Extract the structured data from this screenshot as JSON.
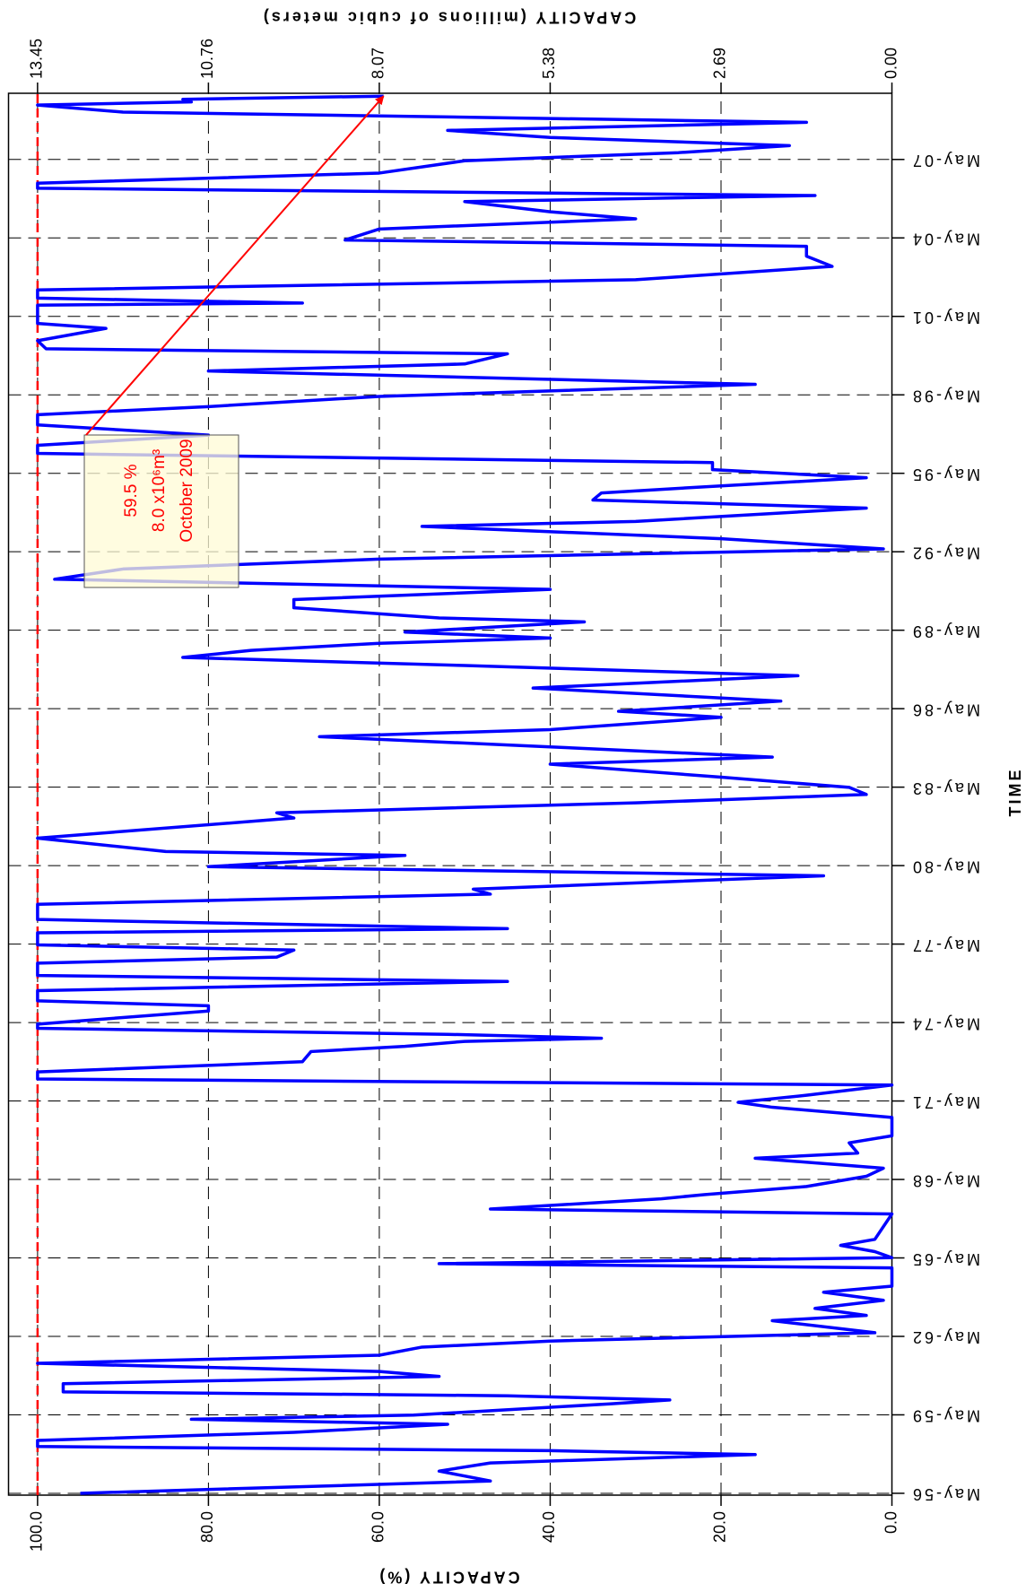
{
  "chart_data": {
    "type": "line",
    "x_label": "TIME",
    "y_label": "CAPACITY (%)",
    "y2_label": "CAPACITY (millions of cubic meters)",
    "color": "#0000ff",
    "grid": true,
    "xlim": [
      1956.3,
      2009.9
    ],
    "xticks": [
      {
        "value": 1956.37,
        "label": "May-56"
      },
      {
        "value": 1959.37,
        "label": "May-59"
      },
      {
        "value": 1962.37,
        "label": "May-62"
      },
      {
        "value": 1965.37,
        "label": "May-65"
      },
      {
        "value": 1968.37,
        "label": "May-68"
      },
      {
        "value": 1971.37,
        "label": "May-71"
      },
      {
        "value": 1974.37,
        "label": "May-74"
      },
      {
        "value": 1977.37,
        "label": "May-77"
      },
      {
        "value": 1980.37,
        "label": "May-80"
      },
      {
        "value": 1983.37,
        "label": "May-83"
      },
      {
        "value": 1986.37,
        "label": "May-86"
      },
      {
        "value": 1989.37,
        "label": "May-89"
      },
      {
        "value": 1992.37,
        "label": "May-92"
      },
      {
        "value": 1995.37,
        "label": "May-95"
      },
      {
        "value": 1998.37,
        "label": "May-98"
      },
      {
        "value": 2001.37,
        "label": "May-01"
      },
      {
        "value": 2004.37,
        "label": "May-04"
      },
      {
        "value": 2007.37,
        "label": "May-07"
      }
    ],
    "ylim": [
      0,
      103.4
    ],
    "yticks": [
      {
        "value": 0,
        "label": "0.0"
      },
      {
        "value": 20,
        "label": "20.0"
      },
      {
        "value": 40,
        "label": "40.0"
      },
      {
        "value": 60,
        "label": "60.0"
      },
      {
        "value": 80,
        "label": "80.0"
      },
      {
        "value": 100,
        "label": "100.0"
      }
    ],
    "y2lim": [
      0,
      13.907
    ],
    "y2ticks": [
      {
        "value": 0,
        "label": "0.00"
      },
      2.69,
      5.38,
      8.07,
      10.76,
      13.45
    ],
    "reference_line": {
      "value": 100,
      "color": "#ff0000"
    },
    "annotation": {
      "lines": [
        "59.5 %",
        "8.0 x10⁶m³",
        "October 2009"
      ],
      "color": "#ff0000"
    },
    "x": [
      1956.37,
      1956.84,
      1957.22,
      1957.53,
      1957.85,
      1958.0,
      1958.16,
      1958.39,
      1958.7,
      1959.01,
      1959.2,
      1959.36,
      1959.79,
      1959.94,
      1960.1,
      1960.25,
      1960.56,
      1960.84,
      1961.03,
      1961.34,
      1961.65,
      1961.96,
      1962.19,
      1962.51,
      1962.97,
      1963.17,
      1963.44,
      1963.75,
      1964.06,
      1964.29,
      1964.99,
      1965.15,
      1965.38,
      1965.61,
      1965.85,
      1966.08,
      1967.05,
      1967.24,
      1967.63,
      1967.79,
      1968.1,
      1968.49,
      1968.8,
      1969.18,
      1969.38,
      1969.77,
      1970.04,
      1970.74,
      1971.13,
      1971.32,
      1971.59,
      1971.98,
      1972.21,
      1972.48,
      1972.87,
      1973.26,
      1973.46,
      1973.65,
      1973.77,
      1973.92,
      1974.15,
      1974.31,
      1974.81,
      1975.01,
      1975.2,
      1975.59,
      1975.94,
      1976.17,
      1976.64,
      1976.87,
      1977.14,
      1977.34,
      1977.8,
      1977.96,
      1978.31,
      1978.89,
      1979.28,
      1979.47,
      1979.98,
      1980.33,
      1980.76,
      1980.91,
      1981.42,
      1982.19,
      1982.39,
      1982.77,
      1983.09,
      1983.36,
      1983.75,
      1984.25,
      1984.52,
      1984.91,
      1985.3,
      1985.57,
      1986.04,
      1986.27,
      1986.66,
      1987.16,
      1987.63,
      1988.02,
      1988.33,
      1988.6,
      1988.87,
      1989.07,
      1989.3,
      1989.69,
      1989.84,
      1990.23,
      1990.54,
      1990.93,
      1991.32,
      1991.71,
      1992.09,
      1992.48,
      1992.87,
      1993.34,
      1993.53,
      1994.04,
      1994.35,
      1994.62,
      1994.89,
      1995.2,
      1995.51,
      1995.78,
      1996.13,
      1996.44,
      1996.83,
      1997.22,
      1997.61,
      1997.92,
      1998.31,
      1998.77,
      1999.28,
      1999.55,
      1999.94,
      2000.13,
      2000.44,
      2000.91,
      2001.1,
      2001.8,
      2001.88,
      2002.07,
      2002.38,
      2002.77,
      2003.28,
      2003.67,
      2004.05,
      2004.29,
      2004.71,
      2005.1,
      2005.37,
      2005.76,
      2005.99,
      2006.27,
      2006.46,
      2006.85,
      2007.32,
      2007.63,
      2007.9,
      2008.21,
      2008.48,
      2008.79,
      2009.18,
      2009.45,
      2009.57,
      2009.67,
      2009.79
    ],
    "values": [
      95,
      47,
      53,
      47,
      16,
      40,
      100,
      100,
      70,
      52,
      82,
      56,
      33,
      26,
      45,
      97,
      97,
      53,
      60,
      100,
      60,
      55,
      40,
      2,
      14,
      3,
      9,
      1,
      8,
      0,
      0,
      53,
      0,
      2,
      6,
      2,
      0,
      47,
      27,
      22,
      10,
      3,
      1,
      16,
      4,
      5,
      0,
      0,
      14,
      18,
      10,
      0,
      100,
      100,
      69,
      68,
      57,
      50,
      34,
      52,
      100,
      100,
      80,
      80,
      100,
      100,
      45,
      100,
      100,
      72,
      70,
      100,
      100,
      45,
      100,
      100,
      47,
      49,
      8,
      80,
      57,
      85,
      100,
      70,
      72,
      30,
      3,
      5,
      20,
      40,
      14,
      40,
      67,
      40,
      20,
      32,
      13,
      42,
      11,
      50,
      83,
      75,
      60,
      40,
      57,
      36,
      53,
      70,
      70,
      40,
      98,
      90,
      60,
      1,
      20,
      55,
      30,
      3,
      35,
      34,
      20,
      3,
      21,
      21,
      100,
      100,
      80,
      100,
      100,
      80,
      60,
      16,
      80,
      50,
      45,
      99,
      100,
      92,
      100,
      100,
      69,
      100,
      100,
      30,
      7,
      10,
      10,
      64,
      60,
      30,
      40,
      50,
      9,
      100,
      100,
      60,
      50,
      25,
      12,
      40,
      52,
      10,
      90,
      100,
      82,
      83,
      59.5
    ]
  }
}
